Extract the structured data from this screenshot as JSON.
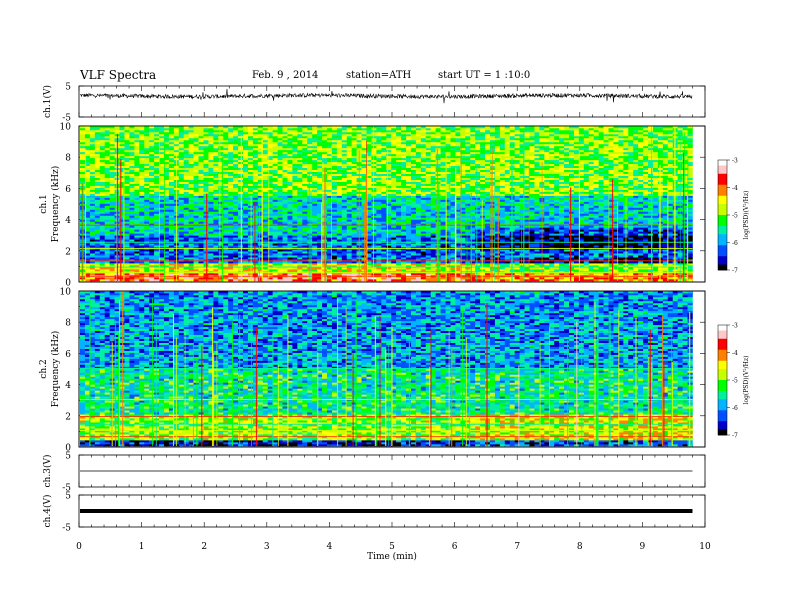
{
  "header": {
    "title": "VLF  Spectra",
    "date": "Feb. 9  , 2014",
    "station": "station=ATH",
    "start": "start  UT  =   1 :10:0"
  },
  "chart_data": [
    {
      "type": "line",
      "panel": "ch1-waveform",
      "ylabel": "ch.1(V)",
      "ylim": [
        -5,
        5
      ],
      "yticks": [
        "5",
        "-5"
      ],
      "xlim": [
        0,
        9.8
      ],
      "series": [
        {
          "values_note_mean": 1.8
        }
      ]
    },
    {
      "type": "heatmap",
      "panel": "ch1-spectrogram",
      "ylabel": "ch.1\nFrequency (kHz)",
      "ylim": [
        0,
        10
      ],
      "yticks": [
        "0",
        "2",
        "4",
        "6",
        "8",
        "10"
      ],
      "xlim": [
        0,
        9.8
      ],
      "colorbar": {
        "label": "log(PSD)(V²/Hz)",
        "ticks": [
          "-3",
          "-4",
          "-5",
          "-6",
          "-7"
        ],
        "range": [
          -7,
          -3
        ]
      }
    },
    {
      "type": "heatmap",
      "panel": "ch2-spectrogram",
      "ylabel": "ch.2\nFrequency (kHz)",
      "ylim": [
        0,
        10
      ],
      "yticks": [
        "0",
        "2",
        "4",
        "6",
        "8",
        "10"
      ],
      "xlim": [
        0,
        9.8
      ],
      "colorbar": {
        "label": "log(PSD)(V²/Hz)",
        "ticks": [
          "-3",
          "-4",
          "-5",
          "-6",
          "-7"
        ],
        "range": [
          -7,
          -3
        ]
      }
    },
    {
      "type": "line",
      "panel": "ch3-waveform",
      "ylabel": "ch.3(V)",
      "ylim": [
        -5,
        5
      ],
      "yticks": [
        "5",
        "-5"
      ],
      "xlim": [
        0,
        9.8
      ],
      "series": [
        {
          "values_note_mean": 0
        }
      ]
    },
    {
      "type": "line",
      "panel": "ch4-waveform",
      "ylabel": "ch.4(V)",
      "ylim": [
        -5,
        5
      ],
      "yticks": [
        "5",
        "-5"
      ],
      "xlim": [
        0,
        9.8
      ],
      "series": [
        {
          "values_note_mean": 0
        }
      ]
    }
  ],
  "xaxis": {
    "label": "Time  (min)",
    "ticks": [
      "0",
      "1",
      "2",
      "3",
      "4",
      "5",
      "6",
      "7",
      "8",
      "9",
      "10"
    ],
    "range": [
      0,
      10
    ]
  },
  "colors": {
    "colormap": [
      "#000000",
      "#0000c8",
      "#0050ff",
      "#00b4ff",
      "#00f0a0",
      "#00ff00",
      "#c8ff00",
      "#ffff00",
      "#ff8000",
      "#ff0000",
      "#ffc8c8",
      "#ffffff"
    ]
  }
}
